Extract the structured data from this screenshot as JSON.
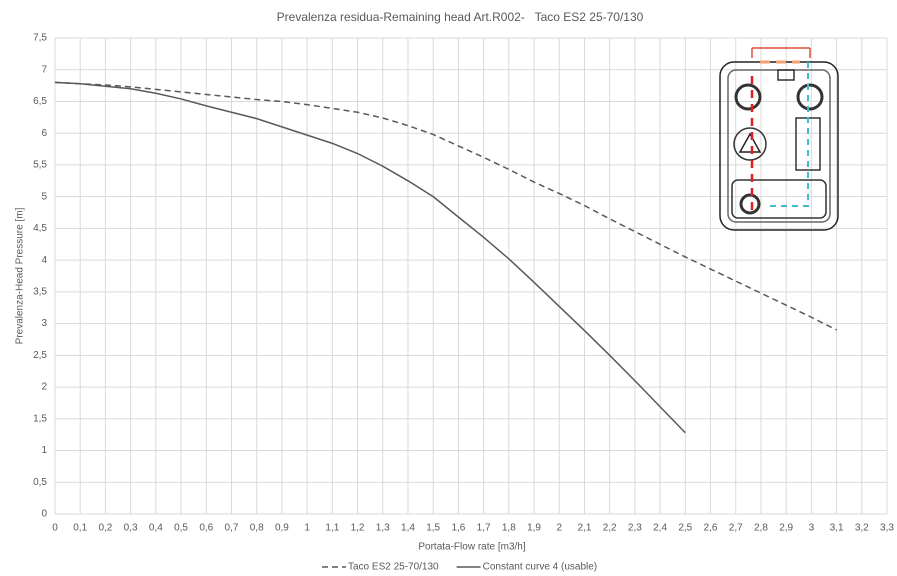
{
  "chart_data": {
    "type": "line",
    "title": "Prevalenza residua-Remaining head Art.R002-   Taco ES2 25-70/130",
    "x_label": "Portata-Flow rate [m3/h]",
    "y_label": "Prevalenza-Head Pressure [m]",
    "x": [
      0,
      0.1,
      0.2,
      0.3,
      0.4,
      0.5,
      0.6,
      0.7,
      0.8,
      0.9,
      1,
      1.1,
      1.2,
      1.3,
      1.4,
      1.5,
      1.6,
      1.7,
      1.8,
      1.9,
      2,
      2.1,
      2.2,
      2.3,
      2.4,
      2.5,
      2.6,
      2.7,
      2.8,
      2.9,
      3,
      3.1
    ],
    "series": [
      {
        "name": "Taco ES2 25-70/130",
        "color": "#595959",
        "line_style": "dashed",
        "values": [
          6.8,
          6.78,
          6.76,
          6.73,
          6.69,
          6.65,
          6.61,
          6.57,
          6.53,
          6.5,
          6.45,
          6.39,
          6.33,
          6.24,
          6.12,
          5.98,
          5.8,
          5.62,
          5.43,
          5.23,
          5.05,
          4.86,
          4.65,
          4.45,
          4.25,
          4.05,
          3.86,
          3.67,
          3.48,
          3.29,
          3.1,
          2.9
        ]
      },
      {
        "name": "Constant curve 4 (usable)",
        "color": "#595959",
        "line_style": "solid",
        "values": [
          6.8,
          6.78,
          6.74,
          6.7,
          6.63,
          6.54,
          6.43,
          6.33,
          6.23,
          6.1,
          5.97,
          5.84,
          5.68,
          5.48,
          5.25,
          5.0,
          4.68,
          4.36,
          4.02,
          3.65,
          3.27,
          2.89,
          2.5,
          2.1,
          1.69,
          1.28,
          null,
          null,
          null,
          null,
          null,
          null
        ]
      }
    ],
    "xlim": [
      0,
      3.3
    ],
    "ylim": [
      0,
      7.5
    ],
    "xticks": [
      0,
      {
        "value": 0.1,
        "label": "0,1"
      },
      {
        "value": 0.2,
        "label": "0,2"
      },
      {
        "value": 0.3,
        "label": "0,3"
      },
      {
        "value": 0.4,
        "label": "0,4"
      },
      {
        "value": 0.5,
        "label": "0,5"
      },
      {
        "value": 0.6,
        "label": "0,6"
      },
      {
        "value": 0.7,
        "label": "0,7"
      },
      {
        "value": 0.8,
        "label": "0,8"
      },
      {
        "value": 0.9,
        "label": "0,9"
      },
      1,
      {
        "value": 1.1,
        "label": "1,1"
      },
      {
        "value": 1.2,
        "label": "1,2"
      },
      {
        "value": 1.3,
        "label": "1,3"
      },
      {
        "value": 1.4,
        "label": "1,4"
      },
      {
        "value": 1.5,
        "label": "1,5"
      },
      {
        "value": 1.6,
        "label": "1,6"
      },
      {
        "value": 1.7,
        "label": "1,7"
      },
      {
        "value": 1.8,
        "label": "1,8"
      },
      {
        "value": 1.9,
        "label": "1,9"
      },
      2,
      {
        "value": 2.1,
        "label": "2,1"
      },
      {
        "value": 2.2,
        "label": "2,2"
      },
      {
        "value": 2.3,
        "label": "2,3"
      },
      {
        "value": 2.4,
        "label": "2,4"
      },
      {
        "value": 2.5,
        "label": "2,5"
      },
      {
        "value": 2.6,
        "label": "2,6"
      },
      {
        "value": 2.7,
        "label": "2,7"
      },
      {
        "value": 2.8,
        "label": "2,8"
      },
      {
        "value": 2.9,
        "label": "2,9"
      },
      3,
      {
        "value": 3.1,
        "label": "3,1"
      },
      {
        "value": 3.2,
        "label": "3,2"
      },
      {
        "value": 3.3,
        "label": "3,3"
      }
    ],
    "yticks": [
      0,
      {
        "value": 0.5,
        "label": "0,5"
      },
      1,
      {
        "value": 1.5,
        "label": "1,5"
      },
      2,
      {
        "value": 2.5,
        "label": "2,5"
      },
      3,
      {
        "value": 3.5,
        "label": "3,5"
      },
      4,
      {
        "value": 4.5,
        "label": "4,5"
      },
      5,
      {
        "value": 5.5,
        "label": "5,5"
      },
      6,
      {
        "value": 6.5,
        "label": "6,5"
      },
      7,
      {
        "value": 7.5,
        "label": "7,5"
      }
    ],
    "grid": true,
    "legend": "bottom"
  }
}
